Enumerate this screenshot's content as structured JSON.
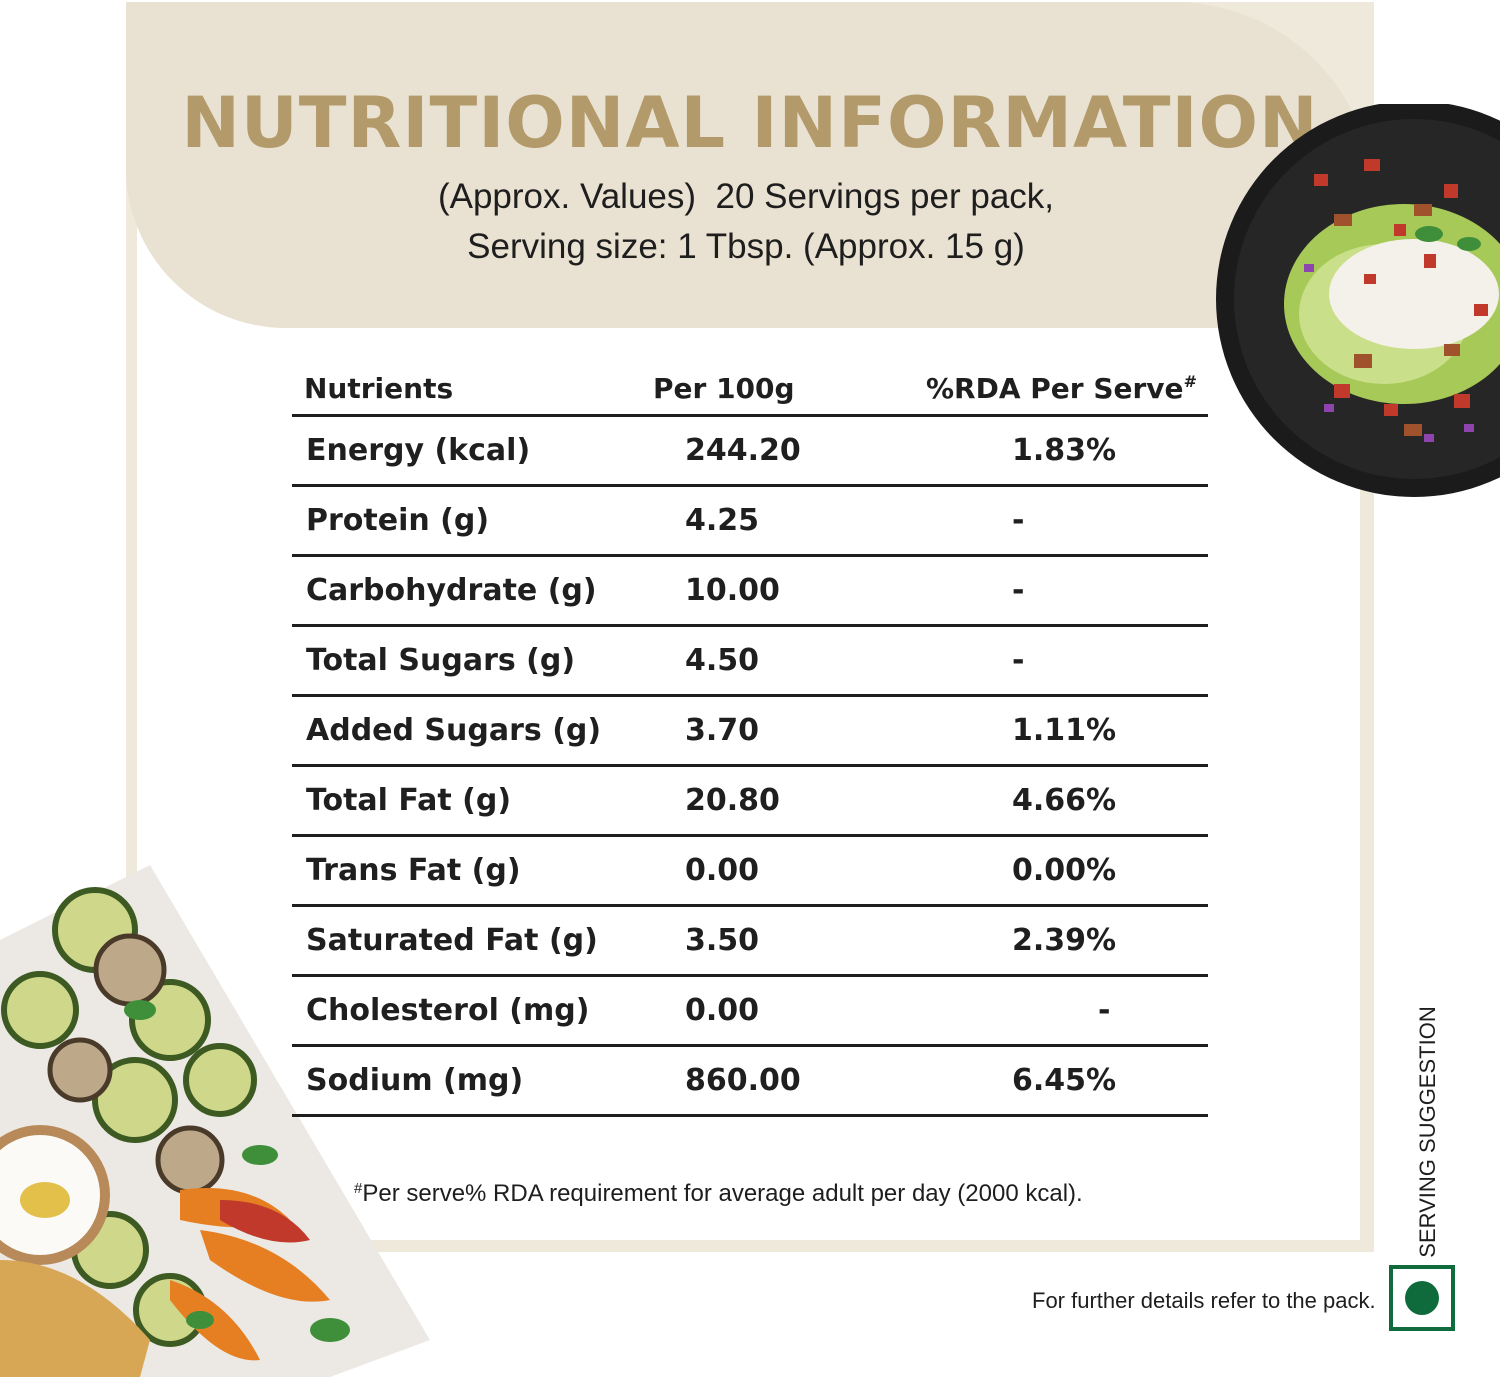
{
  "header": {
    "title": "NUTRITIONAL INFORMATION",
    "subtitle_line1": "(Approx. Values)  20 Servings per pack,",
    "subtitle_line2": "Serving size: 1 Tbsp. (Approx. 15 g)"
  },
  "table": {
    "col_nutrients": "Nutrients",
    "col_per100": "Per 100g",
    "col_rda": "%RDA Per Serve",
    "col_rda_mark": "#",
    "rows": [
      {
        "name": "Energy (kcal)",
        "per100": "244.20",
        "rda": "1.83%"
      },
      {
        "name": "Protein (g)",
        "per100": "4.25",
        "rda": "-"
      },
      {
        "name": "Carbohydrate (g)",
        "per100": "10.00",
        "rda": "-"
      },
      {
        "name": "Total Sugars (g)",
        "per100": "4.50",
        "rda": "-"
      },
      {
        "name": "Added Sugars (g)",
        "per100": "3.70",
        "rda": "1.11%"
      },
      {
        "name": "Total Fat (g)",
        "per100": "20.80",
        "rda": "4.66%"
      },
      {
        "name": "Trans Fat (g)",
        "per100": "0.00",
        "rda": "0.00%"
      },
      {
        "name": "Saturated Fat (g)",
        "per100": "3.50",
        "rda": "2.39%"
      },
      {
        "name": "Cholesterol (mg)",
        "per100": "0.00",
        "rda": "-"
      },
      {
        "name": "Sodium (mg)",
        "per100": "860.00",
        "rda": "6.45%"
      }
    ]
  },
  "footnote": {
    "mark": "#",
    "text": "Per serve% RDA requirement for average adult per day (2000 kcal)."
  },
  "serving_suggestion": "SERVING SUGGESTION",
  "refer_text": "For further details refer to the pack.",
  "icons": {
    "veg_mark": "vegetarian-symbol-icon",
    "salad": "wedge-salad-plate-image",
    "vegetables": "grilled-vegetables-board-image"
  },
  "colors": {
    "title": "#b39a6b",
    "band": "#e9e1d1",
    "veg_green": "#0f6b3b"
  }
}
